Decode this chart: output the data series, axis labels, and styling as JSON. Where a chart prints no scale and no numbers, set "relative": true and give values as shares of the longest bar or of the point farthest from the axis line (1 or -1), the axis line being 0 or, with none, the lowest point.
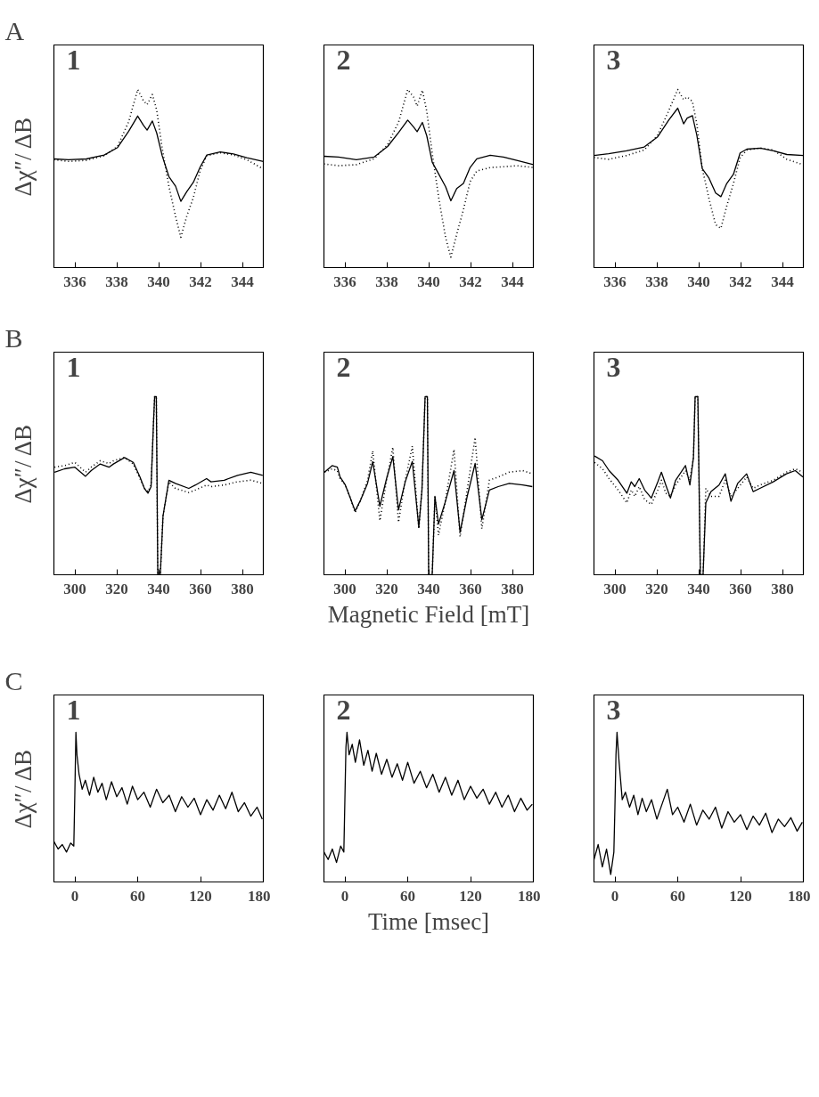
{
  "chart_data": [
    {
      "type": "line",
      "relative": true,
      "tick_labels": "x",
      "ylabel": "Δχ″/ ΔB",
      "annotations": [
        "1",
        "A"
      ],
      "xlim": [
        335,
        345
      ],
      "xticks": [
        336,
        338,
        340,
        342,
        344
      ],
      "x": [
        335.0,
        335.7,
        336.55,
        337.4,
        338.04,
        338.57,
        339.0,
        339.28,
        339.45,
        339.7,
        339.91,
        340.17,
        340.49,
        340.81,
        341.06,
        341.34,
        341.66,
        341.98,
        342.3,
        342.94,
        343.57,
        344.21,
        345.0
      ],
      "series": [
        {
          "color": "#000000",
          "values": [
            0.61,
            0.606,
            0.61,
            0.632,
            0.674,
            0.766,
            0.851,
            0.798,
            0.772,
            0.823,
            0.755,
            0.628,
            0.511,
            0.457,
            0.372,
            0.426,
            0.479,
            0.564,
            0.632,
            0.649,
            0.638,
            0.617,
            0.596
          ]
        },
        {
          "color": "#000000",
          "line_style": "dotted",
          "values": [
            0.606,
            0.596,
            0.602,
            0.628,
            0.681,
            0.819,
            1.0,
            0.936,
            0.915,
            0.972,
            0.883,
            0.67,
            0.457,
            0.287,
            0.17,
            0.287,
            0.394,
            0.543,
            0.628,
            0.645,
            0.632,
            0.606,
            0.553
          ]
        }
      ]
    },
    {
      "type": "line",
      "relative": true,
      "tick_labels": "x",
      "annotations": [
        "2"
      ],
      "xlim": [
        335,
        345
      ],
      "xticks": [
        336,
        338,
        340,
        342,
        344
      ],
      "x": [
        335.0,
        335.7,
        336.55,
        337.4,
        338.04,
        338.57,
        339.0,
        339.28,
        339.45,
        339.7,
        339.91,
        340.17,
        340.49,
        340.81,
        341.06,
        341.34,
        341.66,
        341.98,
        342.3,
        342.94,
        343.57,
        344.21,
        345.0
      ],
      "series": [
        {
          "color": "#000000",
          "values": [
            0.625,
            0.621,
            0.606,
            0.621,
            0.68,
            0.759,
            0.828,
            0.789,
            0.763,
            0.815,
            0.74,
            0.592,
            0.523,
            0.454,
            0.375,
            0.444,
            0.473,
            0.562,
            0.611,
            0.631,
            0.621,
            0.602,
            0.578
          ]
        },
        {
          "color": "#000000",
          "line_style": "dotted",
          "values": [
            0.582,
            0.572,
            0.578,
            0.611,
            0.69,
            0.819,
            1.0,
            0.957,
            0.907,
            0.996,
            0.878,
            0.641,
            0.385,
            0.168,
            0.059,
            0.187,
            0.325,
            0.483,
            0.542,
            0.562,
            0.566,
            0.572,
            0.562
          ]
        }
      ]
    },
    {
      "type": "line",
      "relative": true,
      "tick_labels": "x",
      "annotations": [
        "3"
      ],
      "xlim": [
        335,
        345
      ],
      "xticks": [
        336,
        338,
        340,
        342,
        344
      ],
      "x": [
        335.0,
        335.7,
        336.55,
        337.4,
        338.04,
        338.57,
        339.0,
        339.28,
        339.45,
        339.7,
        339.91,
        340.17,
        340.49,
        340.81,
        341.06,
        341.34,
        341.66,
        341.98,
        342.3,
        342.94,
        343.57,
        344.21,
        345.0
      ],
      "series": [
        {
          "color": "#000000",
          "values": [
            0.629,
            0.639,
            0.656,
            0.677,
            0.734,
            0.828,
            0.895,
            0.807,
            0.839,
            0.853,
            0.744,
            0.556,
            0.503,
            0.419,
            0.398,
            0.472,
            0.524,
            0.644,
            0.665,
            0.671,
            0.656,
            0.635,
            0.629
          ]
        },
        {
          "color": "#000000",
          "line_style": "dotted",
          "values": [
            0.618,
            0.608,
            0.629,
            0.66,
            0.744,
            0.881,
            1.0,
            0.943,
            0.958,
            0.933,
            0.807,
            0.556,
            0.388,
            0.241,
            0.22,
            0.346,
            0.472,
            0.618,
            0.66,
            0.671,
            0.66,
            0.608,
            0.577
          ]
        }
      ]
    },
    {
      "type": "line",
      "relative": true,
      "tick_labels": "x",
      "ylabel": "Δχ″/ ΔB",
      "annotations": [
        "1",
        "B"
      ],
      "xlim": [
        290,
        390
      ],
      "xticks": [
        300,
        320,
        340,
        360,
        380
      ],
      "x": [
        290.3,
        295.1,
        300.0,
        305.1,
        307.8,
        312.1,
        316.3,
        318.4,
        323.7,
        327.9,
        331.1,
        333.2,
        334.9,
        336.4,
        337.5,
        338.1,
        338.9,
        339.6,
        340.8,
        342.1,
        344.9,
        348.0,
        354.4,
        357.6,
        362.9,
        365.0,
        371.3,
        377.7,
        384.0,
        389.7
      ],
      "series": [
        {
          "color": "#000000",
          "values": [
            0.576,
            0.595,
            0.604,
            0.553,
            0.585,
            0.622,
            0.604,
            0.622,
            0.658,
            0.631,
            0.549,
            0.485,
            0.458,
            0.495,
            0.84,
            1.0,
            1.0,
            0,
            0,
            0.331,
            0.531,
            0.513,
            0.485,
            0.504,
            0.54,
            0.522,
            0.531,
            0.558,
            0.576,
            0.558
          ]
        },
        {
          "color": "#000000",
          "line_style": "dotted",
          "values": [
            0.604,
            0.613,
            0.631,
            0.576,
            0.604,
            0.64,
            0.625,
            0.64,
            0.658,
            0.622,
            0.54,
            0.485,
            0.467,
            0.504,
            0.84,
            1.0,
            1.0,
            0,
            0,
            0.331,
            0.522,
            0.485,
            0.462,
            0.476,
            0.504,
            0.495,
            0.504,
            0.522,
            0.531,
            0.513
          ]
        }
      ]
    },
    {
      "type": "line",
      "relative": true,
      "tick_labels": "x",
      "xlabel": "Magnetic Field [mT]",
      "annotations": [
        "2"
      ],
      "xlim": [
        290,
        390
      ],
      "xticks": [
        300,
        320,
        340,
        360,
        380
      ],
      "x": [
        290.3,
        293.9,
        296.4,
        297.7,
        300.2,
        302.3,
        304.9,
        307.6,
        310.8,
        313.3,
        316.7,
        319.9,
        322.9,
        325.6,
        328.8,
        332.2,
        335.3,
        336.8,
        338.3,
        339.4,
        340.0,
        341.7,
        343.0,
        344.7,
        347.8,
        352.1,
        355.0,
        358.4,
        362.2,
        365.4,
        369.0,
        373.2,
        378.5,
        384.9,
        389.5
      ],
      "series": [
        {
          "color": "#000000",
          "values": [
            0.576,
            0.613,
            0.604,
            0.549,
            0.504,
            0.44,
            0.358,
            0.422,
            0.513,
            0.636,
            0.385,
            0.54,
            0.664,
            0.364,
            0.522,
            0.636,
            0.267,
            0.476,
            1.0,
            1.0,
            0,
            0,
            0.44,
            0.285,
            0.404,
            0.585,
            0.24,
            0.44,
            0.625,
            0.309,
            0.476,
            0.495,
            0.513,
            0.504,
            0.495
          ]
        },
        {
          "color": "#000000",
          "line_style": "dotted",
          "values": [
            0.576,
            0.595,
            0.585,
            0.54,
            0.504,
            0.44,
            0.349,
            0.422,
            0.531,
            0.695,
            0.304,
            0.531,
            0.716,
            0.295,
            0.531,
            0.722,
            0.258,
            0.476,
            1.0,
            1.0,
            0,
            0,
            0.44,
            0.222,
            0.404,
            0.704,
            0.213,
            0.476,
            0.771,
            0.258,
            0.531,
            0.549,
            0.576,
            0.585,
            0.567
          ]
        }
      ]
    },
    {
      "type": "line",
      "relative": true,
      "tick_labels": "x",
      "annotations": [
        "3"
      ],
      "xlim": [
        290,
        390
      ],
      "xticks": [
        300,
        320,
        340,
        360,
        380
      ],
      "x": [
        290.3,
        294.1,
        297.2,
        301.5,
        305.7,
        307.8,
        309.5,
        311.6,
        314.2,
        317.4,
        320.5,
        322.2,
        324.3,
        326.5,
        329.0,
        333.7,
        335.8,
        337.5,
        338.3,
        339.6,
        340.8,
        342.1,
        343.4,
        345.9,
        349.7,
        352.7,
        355.4,
        358.6,
        362.9,
        366.0,
        369.2,
        375.6,
        381.9,
        386.1,
        389.8
      ],
      "series": [
        {
          "color": "#000000",
          "values": [
            0.667,
            0.64,
            0.585,
            0.531,
            0.458,
            0.522,
            0.495,
            0.54,
            0.476,
            0.431,
            0.522,
            0.576,
            0.504,
            0.431,
            0.531,
            0.613,
            0.504,
            0.658,
            1.0,
            1.0,
            0,
            0,
            0.404,
            0.467,
            0.504,
            0.567,
            0.413,
            0.513,
            0.567,
            0.467,
            0.485,
            0.522,
            0.567,
            0.585,
            0.549
          ]
        },
        {
          "color": "#000000",
          "line_style": "dotted",
          "values": [
            0.631,
            0.595,
            0.54,
            0.476,
            0.404,
            0.476,
            0.44,
            0.495,
            0.422,
            0.395,
            0.476,
            0.531,
            0.458,
            0.44,
            0.504,
            0.585,
            0.531,
            0.658,
            1.0,
            1.0,
            0,
            0,
            0.485,
            0.44,
            0.44,
            0.531,
            0.44,
            0.485,
            0.549,
            0.485,
            0.504,
            0.531,
            0.576,
            0.595,
            0.576
          ]
        }
      ]
    },
    {
      "type": "line",
      "relative": true,
      "tick_labels": "x",
      "ylabel": "Δχ″/ ΔB",
      "annotations": [
        "1",
        "C"
      ],
      "xlim": [
        -20,
        180
      ],
      "xticks": [
        0,
        60,
        120,
        180
      ],
      "x": [
        -20,
        -16,
        -12,
        -8,
        -4,
        -1,
        0,
        1,
        2,
        4,
        7,
        10,
        14,
        18,
        22,
        26,
        30,
        35,
        40,
        45,
        50,
        55,
        60,
        66,
        72,
        78,
        84,
        90,
        96,
        102,
        108,
        114,
        120,
        126,
        132,
        138,
        144,
        150,
        156,
        162,
        168,
        174,
        179
      ],
      "series": [
        {
          "color": "#000000",
          "values": [
            0.27,
            0.22,
            0.25,
            0.2,
            0.26,
            0.24,
            0.6,
            1.0,
            0.85,
            0.72,
            0.62,
            0.68,
            0.58,
            0.7,
            0.6,
            0.66,
            0.55,
            0.67,
            0.57,
            0.63,
            0.52,
            0.64,
            0.55,
            0.6,
            0.5,
            0.62,
            0.53,
            0.58,
            0.47,
            0.57,
            0.5,
            0.56,
            0.45,
            0.55,
            0.48,
            0.58,
            0.49,
            0.6,
            0.47,
            0.53,
            0.44,
            0.5,
            0.42
          ]
        }
      ]
    },
    {
      "type": "line",
      "relative": true,
      "tick_labels": "x",
      "xlabel": "Time [msec]",
      "annotations": [
        "2"
      ],
      "xlim": [
        -20,
        180
      ],
      "xticks": [
        0,
        60,
        120,
        180
      ],
      "x": [
        -20,
        -16,
        -12,
        -8,
        -4,
        -1,
        0,
        1,
        2,
        4,
        7,
        10,
        14,
        18,
        22,
        26,
        30,
        35,
        40,
        45,
        50,
        55,
        60,
        66,
        72,
        78,
        84,
        90,
        96,
        102,
        108,
        114,
        120,
        126,
        132,
        138,
        144,
        150,
        156,
        162,
        168,
        174,
        179
      ],
      "series": [
        {
          "color": "#000000",
          "values": [
            0.2,
            0.15,
            0.22,
            0.13,
            0.24,
            0.2,
            0.55,
            0.9,
            1.0,
            0.85,
            0.92,
            0.8,
            0.95,
            0.78,
            0.88,
            0.74,
            0.86,
            0.72,
            0.82,
            0.7,
            0.79,
            0.68,
            0.8,
            0.66,
            0.74,
            0.63,
            0.72,
            0.6,
            0.7,
            0.58,
            0.68,
            0.55,
            0.64,
            0.56,
            0.62,
            0.52,
            0.6,
            0.5,
            0.58,
            0.47,
            0.56,
            0.48,
            0.52
          ]
        }
      ]
    },
    {
      "type": "line",
      "relative": true,
      "tick_labels": "x",
      "annotations": [
        "3"
      ],
      "xlim": [
        -20,
        180
      ],
      "xticks": [
        0,
        60,
        120,
        180
      ],
      "x": [
        -20,
        -16,
        -12,
        -8,
        -4,
        -1,
        0,
        1,
        2,
        4,
        7,
        10,
        14,
        18,
        22,
        26,
        30,
        35,
        40,
        45,
        50,
        55,
        60,
        66,
        72,
        78,
        84,
        90,
        96,
        102,
        108,
        114,
        120,
        126,
        132,
        138,
        144,
        150,
        156,
        162,
        168,
        174,
        179
      ],
      "series": [
        {
          "color": "#000000",
          "values": [
            0.15,
            0.25,
            0.1,
            0.22,
            0.05,
            0.2,
            0.5,
            0.85,
            1.0,
            0.8,
            0.55,
            0.6,
            0.5,
            0.58,
            0.45,
            0.56,
            0.47,
            0.55,
            0.42,
            0.52,
            0.62,
            0.45,
            0.5,
            0.4,
            0.52,
            0.38,
            0.48,
            0.42,
            0.5,
            0.36,
            0.47,
            0.4,
            0.45,
            0.35,
            0.44,
            0.38,
            0.46,
            0.33,
            0.42,
            0.37,
            0.43,
            0.34,
            0.4
          ]
        }
      ]
    }
  ]
}
